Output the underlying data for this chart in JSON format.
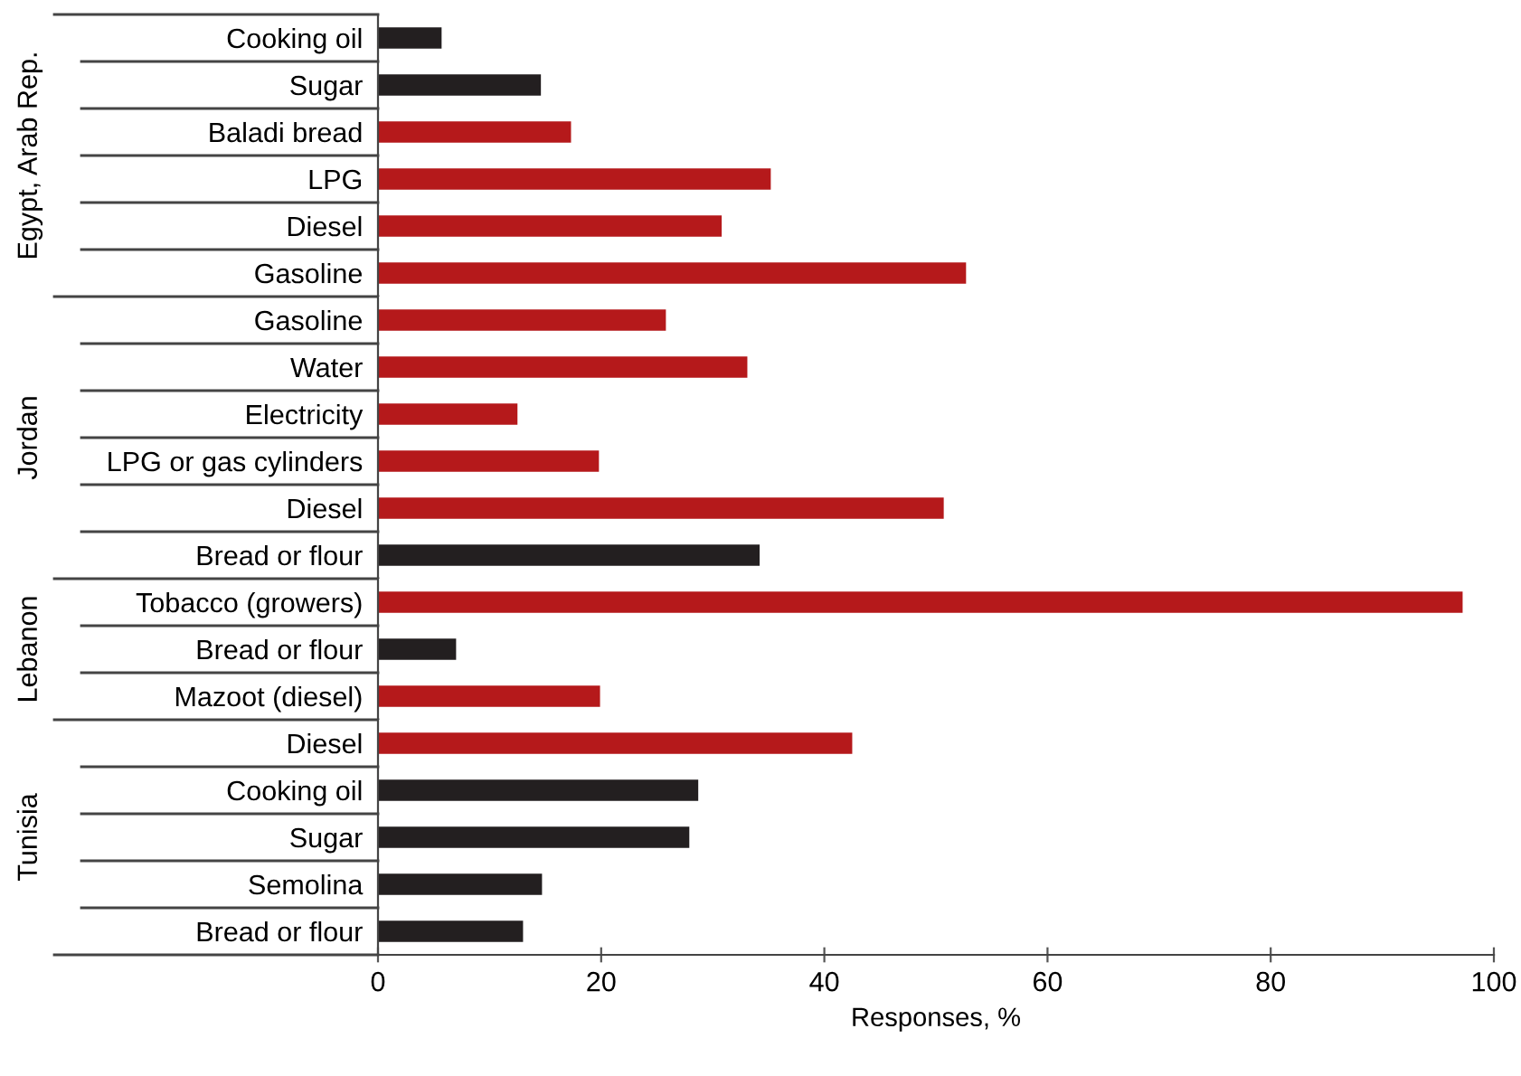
{
  "chart_data": [
    {
      "type": "bar",
      "orientation": "horizontal",
      "ylabel": "Egypt, Arab Rep.",
      "categories": [
        "Cooking oil",
        "Sugar",
        "Baladi bread",
        "LPG",
        "Diesel",
        "Gasoline"
      ],
      "values": [
        5.7,
        14.6,
        17.3,
        35.2,
        30.8,
        52.7
      ],
      "colors": [
        "#231f20",
        "#231f20",
        "#b5191b",
        "#b5191b",
        "#b5191b",
        "#b5191b"
      ],
      "xlim": [
        0,
        100
      ],
      "xticks": [
        0,
        20,
        40,
        60,
        80,
        100
      ],
      "tick_labels": "y"
    },
    {
      "type": "bar",
      "orientation": "horizontal",
      "ylabel": "Jordan",
      "categories": [
        "Gasoline",
        "Water",
        "Electricity",
        "LPG or gas cylinders",
        "Diesel",
        "Bread or flour"
      ],
      "values": [
        25.8,
        33.1,
        12.5,
        19.8,
        50.7,
        34.2
      ],
      "colors": [
        "#b5191b",
        "#b5191b",
        "#b5191b",
        "#b5191b",
        "#b5191b",
        "#231f20"
      ],
      "xlim": [
        0,
        100
      ],
      "xticks": [
        0,
        20,
        40,
        60,
        80,
        100
      ],
      "tick_labels": "y"
    },
    {
      "type": "bar",
      "orientation": "horizontal",
      "ylabel": "Lebanon",
      "categories": [
        "Tobacco (growers)",
        "Bread or flour",
        "Mazoot (diesel)"
      ],
      "values": [
        97.2,
        7.0,
        19.9
      ],
      "colors": [
        "#b5191b",
        "#231f20",
        "#b5191b"
      ],
      "xlim": [
        0,
        100
      ],
      "xticks": [
        0,
        20,
        40,
        60,
        80,
        100
      ],
      "tick_labels": "y"
    },
    {
      "type": "bar",
      "orientation": "horizontal",
      "ylabel": "Tunisia",
      "xlabel": "Responses, %",
      "categories": [
        "Diesel",
        "Cooking oil",
        "Sugar",
        "Semolina",
        "Bread or flour"
      ],
      "values": [
        42.5,
        28.7,
        27.9,
        14.7,
        13.0
      ],
      "colors": [
        "#b5191b",
        "#231f20",
        "#231f20",
        "#231f20",
        "#231f20"
      ],
      "xlim": [
        0,
        100
      ],
      "xticks": [
        0,
        20,
        40,
        60,
        80,
        100
      ]
    }
  ]
}
